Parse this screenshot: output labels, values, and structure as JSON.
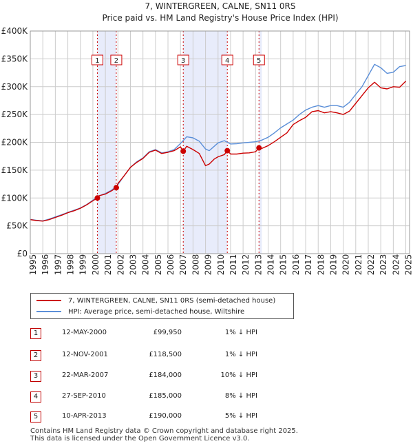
{
  "chart_data": {
    "type": "line",
    "title": "7, WINTERGREEN, CALNE, SN11 0RS",
    "subtitle": "Price paid vs. HM Land Registry's House Price Index (HPI)",
    "xlim": [
      1995,
      2025.3
    ],
    "ylim": [
      0,
      400000
    ],
    "y_ticks": [
      {
        "value": 0,
        "label": "£0"
      },
      {
        "value": 50000,
        "label": "£50K"
      },
      {
        "value": 100000,
        "label": "£100K"
      },
      {
        "value": 150000,
        "label": "£150K"
      },
      {
        "value": 200000,
        "label": "£200K"
      },
      {
        "value": 250000,
        "label": "£250K"
      },
      {
        "value": 300000,
        "label": "£300K"
      },
      {
        "value": 350000,
        "label": "£350K"
      },
      {
        "value": 400000,
        "label": "£400K"
      }
    ],
    "x_ticks": [
      "1995",
      "1996",
      "1997",
      "1998",
      "1999",
      "2000",
      "2001",
      "2002",
      "2003",
      "2004",
      "2005",
      "2006",
      "2007",
      "2008",
      "2009",
      "2010",
      "2011",
      "2012",
      "2013",
      "2014",
      "2015",
      "2016",
      "2017",
      "2018",
      "2019",
      "2020",
      "2021",
      "2022",
      "2023",
      "2024",
      "2025"
    ],
    "grid": true,
    "shaded_periods": [
      [
        2000.36,
        2001.87
      ],
      [
        2007.22,
        2010.74
      ],
      [
        2013.27,
        2013.5
      ]
    ],
    "series": [
      {
        "name": "7, WINTERGREEN, CALNE, SN11 0RS (semi-detached house)",
        "color": "#cc0000",
        "x": [
          1995,
          1995.5,
          1996,
          1996.5,
          1997,
          1997.5,
          1998,
          1998.5,
          1999,
          1999.5,
          2000,
          2000.36,
          2000.5,
          2001,
          2001.5,
          2001.87,
          2002,
          2002.5,
          2003,
          2003.5,
          2004,
          2004.5,
          2005,
          2005.5,
          2006,
          2006.5,
          2007,
          2007.22,
          2007.5,
          2008,
          2008.5,
          2009,
          2009.3,
          2009.7,
          2010,
          2010.5,
          2010.74,
          2011,
          2011.5,
          2012,
          2012.5,
          2013,
          2013.27,
          2013.5,
          2014,
          2014.5,
          2015,
          2015.5,
          2016,
          2016.5,
          2017,
          2017.5,
          2018,
          2018.5,
          2019,
          2019.5,
          2020,
          2020.5,
          2021,
          2021.5,
          2022,
          2022.5,
          2023,
          2023.5,
          2024,
          2024.5,
          2025
        ],
        "values": [
          61000,
          59500,
          58500,
          61000,
          65000,
          69000,
          73500,
          77000,
          81500,
          87500,
          95000,
          99950,
          104000,
          107000,
          113000,
          118500,
          126000,
          140000,
          155000,
          164000,
          171000,
          182000,
          186000,
          180000,
          182000,
          185000,
          192000,
          184000,
          193000,
          187000,
          180000,
          158000,
          161000,
          170000,
          174000,
          178000,
          185000,
          179000,
          179000,
          180500,
          181000,
          183000,
          190000,
          189000,
          194000,
          201000,
          209000,
          217000,
          232000,
          239000,
          245000,
          255000,
          257000,
          253000,
          255000,
          253000,
          250000,
          256000,
          270000,
          284000,
          298000,
          308000,
          298000,
          296000,
          300000,
          299000,
          310000
        ]
      },
      {
        "name": "HPI: Average price, semi-detached house, Wiltshire",
        "color": "#5b8fd8",
        "x": [
          1995,
          1995.5,
          1996,
          1996.5,
          1997,
          1997.5,
          1998,
          1998.5,
          1999,
          1999.5,
          2000,
          2000.5,
          2001,
          2001.5,
          2002,
          2002.5,
          2003,
          2003.5,
          2004,
          2004.5,
          2005,
          2005.5,
          2006,
          2006.5,
          2007,
          2007.5,
          2008,
          2008.5,
          2009,
          2009.3,
          2009.7,
          2010,
          2010.5,
          2011,
          2011.5,
          2012,
          2012.5,
          2013,
          2013.5,
          2014,
          2014.5,
          2015,
          2015.5,
          2016,
          2016.5,
          2017,
          2017.5,
          2018,
          2018.5,
          2019,
          2019.5,
          2020,
          2020.5,
          2021,
          2021.5,
          2022,
          2022.5,
          2023,
          2023.5,
          2024,
          2024.5,
          2025
        ],
        "values": [
          61500,
          60000,
          59000,
          62000,
          66000,
          70000,
          74000,
          78000,
          82000,
          88000,
          96000,
          104000,
          108000,
          114000,
          124000,
          140000,
          155000,
          165000,
          172000,
          183000,
          187000,
          181000,
          183000,
          187000,
          198000,
          210000,
          208000,
          202000,
          188000,
          185000,
          193000,
          199000,
          203000,
          197000,
          197500,
          199000,
          200000,
          201000,
          204000,
          209000,
          217000,
          226000,
          233000,
          240000,
          250000,
          258000,
          263000,
          266000,
          263000,
          266000,
          266000,
          263000,
          272000,
          286000,
          300000,
          320000,
          340000,
          334000,
          324000,
          326000,
          336000,
          338000
        ]
      }
    ],
    "sales": [
      {
        "num": "1",
        "year": 2000.36,
        "price": 99950
      },
      {
        "num": "2",
        "year": 2001.87,
        "price": 118500
      },
      {
        "num": "3",
        "year": 2007.22,
        "price": 184000
      },
      {
        "num": "4",
        "year": 2010.74,
        "price": 185000
      },
      {
        "num": "5",
        "year": 2013.27,
        "price": 190000
      }
    ]
  },
  "legend": {
    "property": "7, WINTERGREEN, CALNE, SN11 0RS (semi-detached house)",
    "hpi": "HPI: Average price, semi-detached house, Wiltshire"
  },
  "table": [
    {
      "num": "1",
      "date": "12-MAY-2000",
      "price": "£99,950",
      "hpi": "1% ↓ HPI"
    },
    {
      "num": "2",
      "date": "12-NOV-2001",
      "price": "£118,500",
      "hpi": "1% ↓ HPI"
    },
    {
      "num": "3",
      "date": "22-MAR-2007",
      "price": "£184,000",
      "hpi": "10% ↓ HPI"
    },
    {
      "num": "4",
      "date": "27-SEP-2010",
      "price": "£185,000",
      "hpi": "8% ↓ HPI"
    },
    {
      "num": "5",
      "date": "10-APR-2013",
      "price": "£190,000",
      "hpi": "5% ↓ HPI"
    }
  ],
  "footer": {
    "line1": "Contains HM Land Registry data © Crown copyright and database right 2025.",
    "line2": "This data is licensed under the Open Government Licence v3.0."
  },
  "colors": {
    "property": "#cc0000",
    "hpi": "#5b8fd8",
    "shade": "#e8ecfb",
    "grid": "#cccccc"
  }
}
